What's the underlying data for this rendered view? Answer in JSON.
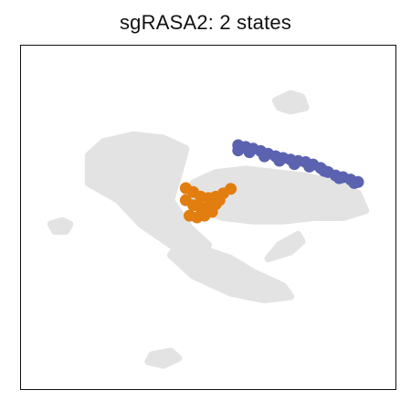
{
  "title": "sgRASA2: 2 states",
  "chart_data": {
    "type": "scatter",
    "title": "sgRASA2: 2 states",
    "xlabel": "",
    "ylabel": "",
    "ticks": "none",
    "grid": false,
    "legend": "none",
    "xlim": [
      0,
      100
    ],
    "ylim": [
      0,
      100
    ],
    "colors": {
      "background_cells": "#e3e3e3",
      "state_1": "#5b63b0",
      "state_2": "#e27d0f"
    },
    "background_clusters": [
      {
        "name": "left-main-region",
        "points": [
          [
            18,
            68
          ],
          [
            22,
            72
          ],
          [
            30,
            74
          ],
          [
            38,
            73
          ],
          [
            44,
            70
          ],
          [
            42,
            62
          ],
          [
            40,
            55
          ],
          [
            45,
            47
          ],
          [
            50,
            42
          ],
          [
            48,
            38
          ],
          [
            40,
            42
          ],
          [
            32,
            48
          ],
          [
            26,
            55
          ],
          [
            18,
            60
          ]
        ]
      },
      {
        "name": "right-arc-region",
        "points": [
          [
            46,
            60
          ],
          [
            52,
            63
          ],
          [
            60,
            64
          ],
          [
            68,
            63
          ],
          [
            76,
            62
          ],
          [
            84,
            60
          ],
          [
            90,
            57
          ],
          [
            92,
            52
          ],
          [
            86,
            50
          ],
          [
            78,
            50
          ],
          [
            70,
            49
          ],
          [
            62,
            49
          ],
          [
            54,
            50
          ],
          [
            48,
            52
          ],
          [
            44,
            56
          ]
        ]
      },
      {
        "name": "lower-tail-region",
        "points": [
          [
            44,
            46
          ],
          [
            48,
            41
          ],
          [
            56,
            38
          ],
          [
            62,
            34
          ],
          [
            70,
            30
          ],
          [
            72,
            27
          ],
          [
            65,
            26
          ],
          [
            56,
            28
          ],
          [
            46,
            33
          ],
          [
            40,
            39
          ]
        ]
      },
      {
        "name": "top-right-island",
        "points": [
          [
            68,
            84
          ],
          [
            72,
            86
          ],
          [
            75,
            85
          ],
          [
            76,
            82
          ],
          [
            72,
            81
          ],
          [
            69,
            82
          ]
        ]
      },
      {
        "name": "left-small-island",
        "points": [
          [
            8,
            48
          ],
          [
            11,
            49
          ],
          [
            13,
            48
          ],
          [
            12,
            46
          ],
          [
            9,
            46
          ]
        ]
      },
      {
        "name": "mid-right-streak",
        "points": [
          [
            66,
            38
          ],
          [
            72,
            40
          ],
          [
            75,
            43
          ],
          [
            74,
            45
          ],
          [
            69,
            42
          ]
        ]
      },
      {
        "name": "bottom-island",
        "points": [
          [
            35,
            10
          ],
          [
            40,
            11
          ],
          [
            42,
            9
          ],
          [
            38,
            7
          ],
          [
            34,
            8
          ]
        ]
      }
    ],
    "series": [
      {
        "color_key": "state_1",
        "points": [
          [
            58,
            71
          ],
          [
            60,
            70.5
          ],
          [
            62,
            70
          ],
          [
            64,
            69.3
          ],
          [
            66,
            68.5
          ],
          [
            68,
            67.8
          ],
          [
            70,
            67.3
          ],
          [
            72,
            66.8
          ],
          [
            74,
            66.4
          ],
          [
            76,
            66.1
          ],
          [
            78,
            65.4
          ],
          [
            80,
            64.4
          ],
          [
            82,
            63.2
          ],
          [
            84,
            62.2
          ],
          [
            86,
            61.7
          ],
          [
            88,
            61
          ],
          [
            90,
            60.3
          ],
          [
            58,
            69.5
          ],
          [
            61,
            69
          ],
          [
            65,
            67.8
          ],
          [
            69,
            66.5
          ],
          [
            73,
            65.5
          ],
          [
            77,
            64.8
          ],
          [
            81,
            63.5
          ],
          [
            85,
            61.4
          ],
          [
            89,
            60
          ]
        ]
      },
      {
        "color_key": "state_2",
        "points": [
          [
            44,
            58.5
          ],
          [
            46,
            57.4
          ],
          [
            48,
            56
          ],
          [
            50,
            55.6
          ],
          [
            52,
            56
          ],
          [
            54,
            57
          ],
          [
            56,
            58.3
          ],
          [
            44,
            55
          ],
          [
            46,
            53.5
          ],
          [
            48,
            52.8
          ],
          [
            50,
            53.2
          ],
          [
            52,
            53.8
          ],
          [
            45,
            50.5
          ],
          [
            47,
            50
          ],
          [
            49,
            50.5
          ],
          [
            51,
            51.6
          ],
          [
            53,
            55
          ]
        ]
      }
    ]
  }
}
